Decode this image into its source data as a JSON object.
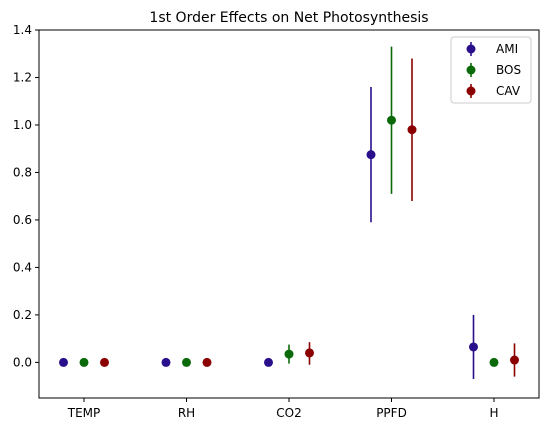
{
  "chart_data": {
    "type": "scatter",
    "title": "1st Order Effects on Net Photosynthesis",
    "xlabel": "",
    "ylabel": "",
    "categories": [
      "TEMP",
      "RH",
      "CO2",
      "PPFD",
      "H"
    ],
    "ylim": [
      -0.15,
      1.4
    ],
    "yticks": [
      "0.0",
      "0.2",
      "0.4",
      "0.6",
      "0.8",
      "1.0",
      "1.2",
      "1.4"
    ],
    "grid": false,
    "legend_position": "top-right",
    "series": [
      {
        "name": "AMI",
        "color": "#2a0f8c",
        "values": [
          0.0,
          0.0,
          0.0,
          0.875,
          0.065
        ],
        "lower": [
          0.0,
          0.0,
          0.0,
          0.59,
          -0.07
        ],
        "upper": [
          0.0,
          0.0,
          0.0,
          1.16,
          0.2
        ]
      },
      {
        "name": "BOS",
        "color": "#0a6a0a",
        "values": [
          0.0,
          0.0,
          0.035,
          1.02,
          0.0
        ],
        "lower": [
          0.0,
          0.0,
          -0.005,
          0.71,
          0.0
        ],
        "upper": [
          0.0,
          0.0,
          0.075,
          1.33,
          0.0
        ]
      },
      {
        "name": "CAV",
        "color": "#8b0000",
        "values": [
          0.0,
          0.0,
          0.04,
          0.98,
          0.01
        ],
        "lower": [
          0.0,
          0.0,
          -0.01,
          0.68,
          -0.06
        ],
        "upper": [
          0.0,
          0.0,
          0.085,
          1.28,
          0.08
        ]
      }
    ]
  }
}
